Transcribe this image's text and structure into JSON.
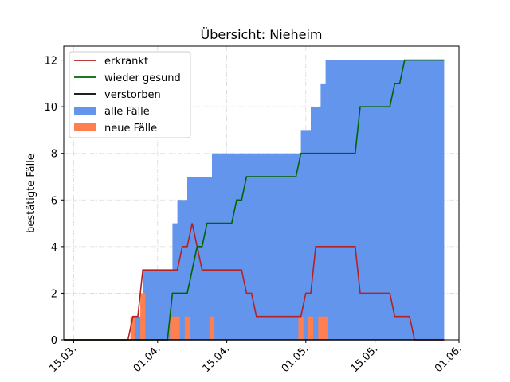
{
  "chart_data": {
    "type": "area",
    "title": "Übersicht: Nieheim",
    "xlabel": "",
    "ylabel": "bestätigte Fälle",
    "xlim": [
      "2020-03-13",
      "2020-06-01"
    ],
    "ylim": [
      0,
      12.6
    ],
    "yticks": [
      0,
      2,
      4,
      6,
      8,
      10,
      12
    ],
    "xticks": [
      {
        "date": "2020-03-15",
        "label": "15.03."
      },
      {
        "date": "2020-04-01",
        "label": "01.04."
      },
      {
        "date": "2020-04-15",
        "label": "15.04."
      },
      {
        "date": "2020-05-01",
        "label": "01.05."
      },
      {
        "date": "2020-05-15",
        "label": "15.05."
      },
      {
        "date": "2020-06-01",
        "label": "01.06."
      }
    ],
    "grid": true,
    "legend_position": "top-left",
    "series": [
      {
        "name": "erkrankt",
        "kind": "line",
        "color": "#b22222",
        "points": [
          [
            "2020-03-13",
            0
          ],
          [
            "2020-03-26",
            0
          ],
          [
            "2020-03-27",
            1
          ],
          [
            "2020-03-28",
            1
          ],
          [
            "2020-03-29",
            3
          ],
          [
            "2020-04-05",
            3
          ],
          [
            "2020-04-06",
            4
          ],
          [
            "2020-04-07",
            4
          ],
          [
            "2020-04-08",
            5
          ],
          [
            "2020-04-10",
            3
          ],
          [
            "2020-04-18",
            3
          ],
          [
            "2020-04-19",
            2
          ],
          [
            "2020-04-20",
            2
          ],
          [
            "2020-04-21",
            1
          ],
          [
            "2020-04-30",
            1
          ],
          [
            "2020-05-01",
            2
          ],
          [
            "2020-05-02",
            2
          ],
          [
            "2020-05-03",
            4
          ],
          [
            "2020-05-11",
            4
          ],
          [
            "2020-05-12",
            2
          ],
          [
            "2020-05-18",
            2
          ],
          [
            "2020-05-19",
            1
          ],
          [
            "2020-05-22",
            1
          ],
          [
            "2020-05-23",
            0
          ],
          [
            "2020-05-29",
            0
          ]
        ]
      },
      {
        "name": "wieder gesund",
        "kind": "line",
        "color": "#006400",
        "points": [
          [
            "2020-03-13",
            0
          ],
          [
            "2020-04-03",
            0
          ],
          [
            "2020-04-04",
            2
          ],
          [
            "2020-04-07",
            2
          ],
          [
            "2020-04-09",
            4
          ],
          [
            "2020-04-10",
            4
          ],
          [
            "2020-04-11",
            5
          ],
          [
            "2020-04-16",
            5
          ],
          [
            "2020-04-17",
            6
          ],
          [
            "2020-04-18",
            6
          ],
          [
            "2020-04-19",
            7
          ],
          [
            "2020-04-29",
            7
          ],
          [
            "2020-04-30",
            8
          ],
          [
            "2020-05-11",
            8
          ],
          [
            "2020-05-12",
            10
          ],
          [
            "2020-05-18",
            10
          ],
          [
            "2020-05-19",
            11
          ],
          [
            "2020-05-20",
            11
          ],
          [
            "2020-05-21",
            12
          ],
          [
            "2020-05-29",
            12
          ]
        ]
      },
      {
        "name": "verstorben",
        "kind": "line",
        "color": "#000000",
        "points": [
          [
            "2020-03-13",
            0
          ],
          [
            "2020-05-29",
            0
          ]
        ]
      },
      {
        "name": "alle Fälle",
        "kind": "area",
        "color": "#6495ed",
        "steps": [
          [
            "2020-03-27",
            1
          ],
          [
            "2020-03-29",
            3
          ],
          [
            "2020-04-04",
            5
          ],
          [
            "2020-04-05",
            6
          ],
          [
            "2020-04-07",
            7
          ],
          [
            "2020-04-12",
            8
          ],
          [
            "2020-04-30",
            9
          ],
          [
            "2020-05-02",
            10
          ],
          [
            "2020-05-04",
            11
          ],
          [
            "2020-05-05",
            12
          ],
          [
            "2020-05-29",
            12
          ]
        ]
      },
      {
        "name": "neue Fälle",
        "kind": "bar",
        "color": "#ff7f50",
        "bars": [
          [
            "2020-03-27",
            1
          ],
          [
            "2020-03-29",
            2
          ],
          [
            "2020-04-04",
            1
          ],
          [
            "2020-04-05",
            1
          ],
          [
            "2020-04-07",
            1
          ],
          [
            "2020-04-12",
            1
          ],
          [
            "2020-04-30",
            1
          ],
          [
            "2020-05-02",
            1
          ],
          [
            "2020-05-04",
            1
          ],
          [
            "2020-05-05",
            1
          ]
        ]
      }
    ]
  }
}
